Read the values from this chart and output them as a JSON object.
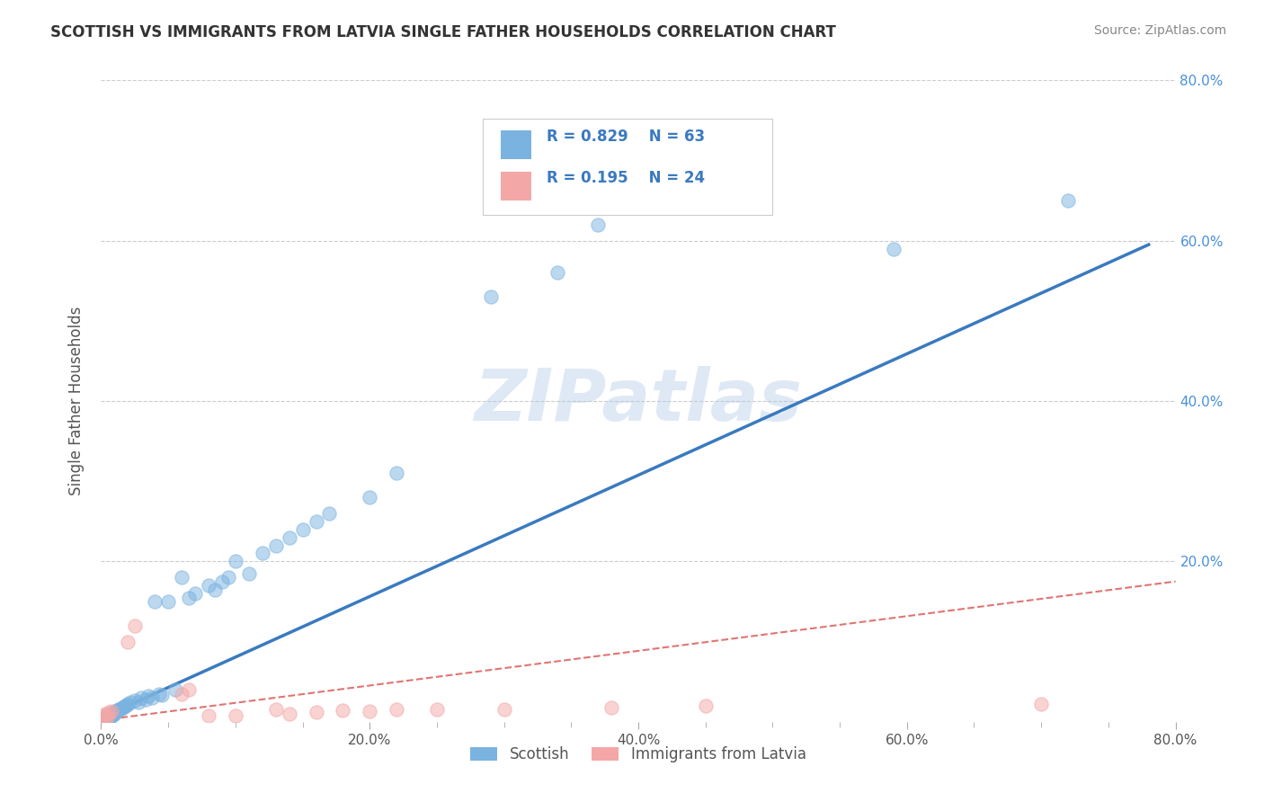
{
  "title": "SCOTTISH VS IMMIGRANTS FROM LATVIA SINGLE FATHER HOUSEHOLDS CORRELATION CHART",
  "source": "Source: ZipAtlas.com",
  "ylabel": "Single Father Households",
  "watermark": "ZIPatlas",
  "legend_r1": "R = 0.829",
  "legend_n1": "N = 63",
  "legend_r2": "R = 0.195",
  "legend_n2": "N = 24",
  "xlim": [
    0.0,
    0.8
  ],
  "ylim": [
    0.0,
    0.8
  ],
  "xtick_labels": [
    "0.0%",
    "20.0%",
    "40.0%",
    "60.0%",
    "80.0%"
  ],
  "xtick_vals": [
    0.0,
    0.2,
    0.4,
    0.6,
    0.8
  ],
  "ytick_labels": [
    "20.0%",
    "40.0%",
    "60.0%",
    "80.0%"
  ],
  "ytick_vals": [
    0.2,
    0.4,
    0.6,
    0.8
  ],
  "blue_color": "#7ab3e0",
  "pink_color": "#f4a7a7",
  "blue_line_color": "#3a7abf",
  "pink_line_color": "#d9534f",
  "title_color": "#333333",
  "label_color": "#555555",
  "source_color": "#888888",
  "grid_color": "#cccccc",
  "scatter_blue": [
    [
      0.001,
      0.002
    ],
    [
      0.002,
      0.004
    ],
    [
      0.002,
      0.003
    ],
    [
      0.003,
      0.005
    ],
    [
      0.003,
      0.004
    ],
    [
      0.004,
      0.006
    ],
    [
      0.004,
      0.003
    ],
    [
      0.005,
      0.007
    ],
    [
      0.005,
      0.005
    ],
    [
      0.006,
      0.008
    ],
    [
      0.006,
      0.006
    ],
    [
      0.007,
      0.009
    ],
    [
      0.007,
      0.007
    ],
    [
      0.008,
      0.01
    ],
    [
      0.008,
      0.008
    ],
    [
      0.009,
      0.011
    ],
    [
      0.009,
      0.009
    ],
    [
      0.01,
      0.012
    ],
    [
      0.01,
      0.01
    ],
    [
      0.011,
      0.013
    ],
    [
      0.012,
      0.014
    ],
    [
      0.013,
      0.015
    ],
    [
      0.014,
      0.016
    ],
    [
      0.015,
      0.017
    ],
    [
      0.016,
      0.018
    ],
    [
      0.017,
      0.019
    ],
    [
      0.018,
      0.02
    ],
    [
      0.019,
      0.021
    ],
    [
      0.02,
      0.022
    ],
    [
      0.022,
      0.024
    ],
    [
      0.025,
      0.027
    ],
    [
      0.028,
      0.025
    ],
    [
      0.03,
      0.03
    ],
    [
      0.033,
      0.028
    ],
    [
      0.035,
      0.032
    ],
    [
      0.038,
      0.03
    ],
    [
      0.04,
      0.15
    ],
    [
      0.043,
      0.035
    ],
    [
      0.045,
      0.033
    ],
    [
      0.05,
      0.15
    ],
    [
      0.055,
      0.04
    ],
    [
      0.06,
      0.18
    ],
    [
      0.065,
      0.155
    ],
    [
      0.07,
      0.16
    ],
    [
      0.08,
      0.17
    ],
    [
      0.085,
      0.165
    ],
    [
      0.09,
      0.175
    ],
    [
      0.095,
      0.18
    ],
    [
      0.1,
      0.2
    ],
    [
      0.11,
      0.185
    ],
    [
      0.12,
      0.21
    ],
    [
      0.13,
      0.22
    ],
    [
      0.14,
      0.23
    ],
    [
      0.15,
      0.24
    ],
    [
      0.16,
      0.25
    ],
    [
      0.17,
      0.26
    ],
    [
      0.2,
      0.28
    ],
    [
      0.22,
      0.31
    ],
    [
      0.29,
      0.53
    ],
    [
      0.34,
      0.56
    ],
    [
      0.37,
      0.62
    ],
    [
      0.59,
      0.59
    ],
    [
      0.72,
      0.65
    ]
  ],
  "scatter_pink": [
    [
      0.001,
      0.003
    ],
    [
      0.002,
      0.008
    ],
    [
      0.003,
      0.01
    ],
    [
      0.004,
      0.005
    ],
    [
      0.005,
      0.008
    ],
    [
      0.006,
      0.012
    ],
    [
      0.008,
      0.013
    ],
    [
      0.02,
      0.1
    ],
    [
      0.025,
      0.12
    ],
    [
      0.06,
      0.035
    ],
    [
      0.065,
      0.04
    ],
    [
      0.08,
      0.008
    ],
    [
      0.1,
      0.008
    ],
    [
      0.13,
      0.015
    ],
    [
      0.14,
      0.01
    ],
    [
      0.16,
      0.012
    ],
    [
      0.18,
      0.014
    ],
    [
      0.2,
      0.013
    ],
    [
      0.22,
      0.015
    ],
    [
      0.25,
      0.016
    ],
    [
      0.3,
      0.015
    ],
    [
      0.38,
      0.018
    ],
    [
      0.45,
      0.02
    ],
    [
      0.7,
      0.022
    ]
  ],
  "blue_trendline_x": [
    0.0,
    0.78
  ],
  "blue_trendline_y": [
    0.005,
    0.595
  ],
  "pink_trendline_x": [
    0.0,
    0.8
  ],
  "pink_trendline_y": [
    0.002,
    0.175
  ]
}
